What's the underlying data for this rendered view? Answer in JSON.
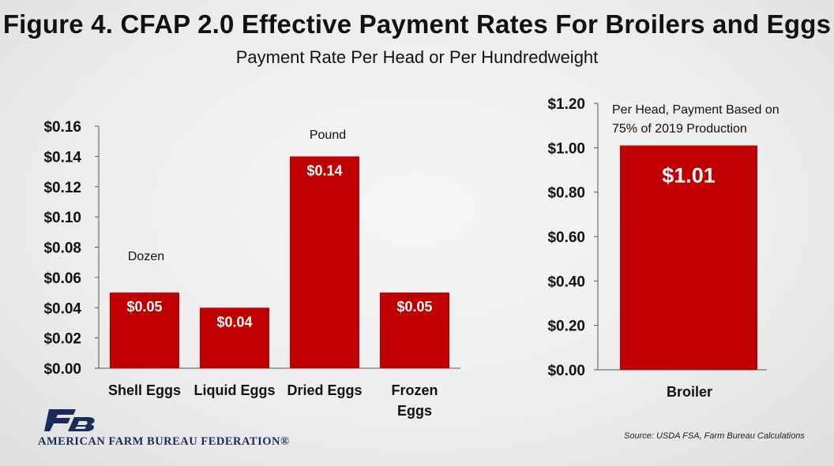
{
  "title": "Figure 4. CFAP 2.0 Effective Payment Rates For Broilers and Eggs",
  "subtitle": "Payment Rate Per Head or Per Hundredweight",
  "colors": {
    "bar": "#c00000",
    "axis": "#555555"
  },
  "chart_data": [
    {
      "type": "bar",
      "categories": [
        "Shell Eggs",
        "Liquid Eggs",
        "Dried Eggs",
        "Frozen Eggs"
      ],
      "category_lines": [
        [
          "Shell Eggs"
        ],
        [
          "Liquid Eggs"
        ],
        [
          "Dried Eggs"
        ],
        [
          "Frozen",
          "Eggs"
        ]
      ],
      "values": [
        0.05,
        0.04,
        0.14,
        0.05
      ],
      "data_labels": [
        "$0.05",
        "$0.04",
        "$0.14",
        "$0.05"
      ],
      "ylim": [
        0,
        0.16
      ],
      "yticks": [
        "$0.00",
        "$0.02",
        "$0.04",
        "$0.06",
        "$0.08",
        "$0.10",
        "$0.12",
        "$0.14",
        "$0.16"
      ],
      "annotations": [
        "Dozen",
        "Pound"
      ],
      "grid": false
    },
    {
      "type": "bar",
      "categories": [
        "Broiler"
      ],
      "values": [
        1.01
      ],
      "data_labels": [
        "$1.01"
      ],
      "ylim": [
        0,
        1.2
      ],
      "yticks": [
        "$0.00",
        "$0.20",
        "$0.40",
        "$0.60",
        "$0.80",
        "$1.00",
        "$1.20"
      ],
      "annotations": [
        "Per Head, Payment Based on",
        "75% of 2019 Production"
      ],
      "grid": false
    }
  ],
  "logo": {
    "name": "farm-bureau-logo",
    "text": "AMERICAN FARM BUREAU FEDERATION®"
  },
  "source": "Source: USDA FSA, Farm Bureau Calculations"
}
